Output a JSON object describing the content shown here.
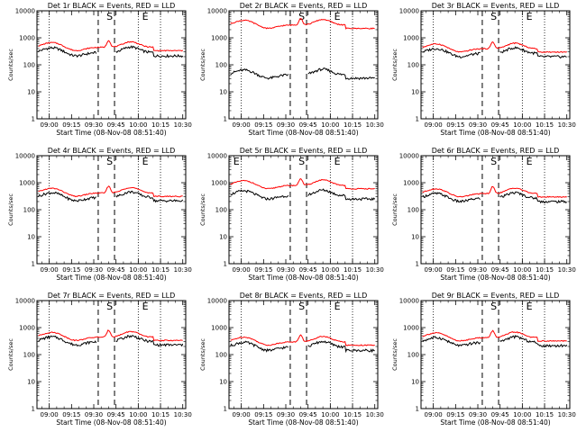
{
  "chart_data": [
    {
      "type": "line",
      "title": "Det 1r BLACK = Events, RED = LLD",
      "ylabel": "Counts/sec",
      "xlabel": "Start Time (08-Nov-08 08:51:40)",
      "x_ticks": [
        "09:00",
        "09:15",
        "09:30",
        "09:45",
        "10:00",
        "10:15",
        "10:30"
      ],
      "y_ticks": [
        "1",
        "10",
        "100",
        "1000",
        "10000"
      ],
      "ylim": [
        1,
        10000
      ],
      "log_y": true,
      "markers": [
        "S",
        "E"
      ],
      "series": [
        {
          "name": "Events",
          "color": "#000000",
          "level": 300
        },
        {
          "name": "LLD",
          "color": "#ff0000",
          "level": 450
        }
      ]
    },
    {
      "type": "line",
      "title": "Det 2r BLACK = Events, RED = LLD",
      "ylabel": "Counts/sec",
      "xlabel": "Start Time (08-Nov-08 08:51:40)",
      "x_ticks": [
        "09:00",
        "09:15",
        "09:30",
        "09:45",
        "10:00",
        "10:15",
        "10:30"
      ],
      "y_ticks": [
        "1",
        "10",
        "100",
        "1000",
        "10000"
      ],
      "ylim": [
        1,
        10000
      ],
      "log_y": true,
      "markers": [
        "S",
        "E"
      ],
      "series": [
        {
          "name": "Events",
          "color": "#000000",
          "level": 45
        },
        {
          "name": "LLD",
          "color": "#ff0000",
          "level": 3000
        }
      ]
    },
    {
      "type": "line",
      "title": "Det 3r BLACK = Events, RED = LLD",
      "ylabel": "Counts/sec",
      "xlabel": "Start Time (08-Nov-08 08:51:40)",
      "x_ticks": [
        "09:00",
        "09:15",
        "09:30",
        "09:45",
        "10:00",
        "10:15",
        "10:30"
      ],
      "y_ticks": [
        "1",
        "10",
        "100",
        "1000",
        "10000"
      ],
      "ylim": [
        1,
        10000
      ],
      "log_y": true,
      "markers": [
        "S",
        "E"
      ],
      "series": [
        {
          "name": "Events",
          "color": "#000000",
          "level": 280
        },
        {
          "name": "LLD",
          "color": "#ff0000",
          "level": 400
        }
      ]
    },
    {
      "type": "line",
      "title": "Det 4r BLACK = Events, RED = LLD",
      "ylabel": "Counts/sec",
      "xlabel": "Start Time (08-Nov-08 08:51:40)",
      "x_ticks": [
        "09:00",
        "09:15",
        "09:30",
        "09:45",
        "10:00",
        "10:15",
        "10:30"
      ],
      "y_ticks": [
        "1",
        "10",
        "100",
        "1000",
        "10000"
      ],
      "ylim": [
        1,
        10000
      ],
      "log_y": true,
      "markers": [
        "S",
        "E"
      ],
      "series": [
        {
          "name": "Events",
          "color": "#000000",
          "level": 300
        },
        {
          "name": "LLD",
          "color": "#ff0000",
          "level": 420
        }
      ]
    },
    {
      "type": "line",
      "title": "Det 5r BLACK = Events, RED = LLD",
      "ylabel": "Counts/sec",
      "xlabel": "Start Time (08-Nov-08 08:51:40)",
      "x_ticks": [
        "09:00",
        "09:15",
        "09:30",
        "09:45",
        "10:00",
        "10:15",
        "10:30"
      ],
      "y_ticks": [
        "1",
        "10",
        "100",
        "1000",
        "10000"
      ],
      "ylim": [
        1,
        10000
      ],
      "log_y": true,
      "markers": [
        "E",
        "S",
        "E"
      ],
      "series": [
        {
          "name": "Events",
          "color": "#000000",
          "level": 350
        },
        {
          "name": "LLD",
          "color": "#ff0000",
          "level": 800
        }
      ]
    },
    {
      "type": "line",
      "title": "Det 6r BLACK = Events, RED = LLD",
      "ylabel": "Counts/sec",
      "xlabel": "Start Time (08-Nov-08 08:51:40)",
      "x_ticks": [
        "09:00",
        "09:15",
        "09:30",
        "09:45",
        "10:00",
        "10:15",
        "10:30"
      ],
      "y_ticks": [
        "1",
        "10",
        "100",
        "1000",
        "10000"
      ],
      "ylim": [
        1,
        10000
      ],
      "log_y": true,
      "markers": [
        "S",
        "E"
      ],
      "series": [
        {
          "name": "Events",
          "color": "#000000",
          "level": 280
        },
        {
          "name": "LLD",
          "color": "#ff0000",
          "level": 400
        }
      ]
    },
    {
      "type": "line",
      "title": "Det 7r BLACK = Events, RED = LLD",
      "ylabel": "Counts/sec",
      "xlabel": "Start Time (08-Nov-08 08:51:40)",
      "x_ticks": [
        "09:00",
        "09:15",
        "09:30",
        "09:45",
        "10:00",
        "10:15",
        "10:30"
      ],
      "y_ticks": [
        "1",
        "10",
        "100",
        "1000",
        "10000"
      ],
      "ylim": [
        1,
        10000
      ],
      "log_y": true,
      "markers": [
        "S",
        "E"
      ],
      "series": [
        {
          "name": "Events",
          "color": "#000000",
          "level": 320
        },
        {
          "name": "LLD",
          "color": "#ff0000",
          "level": 450
        }
      ]
    },
    {
      "type": "line",
      "title": "Det 8r BLACK = Events, RED = LLD",
      "ylabel": "Counts/sec",
      "xlabel": "Start Time (08-Nov-08 08:51:40)",
      "x_ticks": [
        "09:00",
        "09:15",
        "09:30",
        "09:45",
        "10:00",
        "10:15",
        "10:30"
      ],
      "y_ticks": [
        "1",
        "10",
        "100",
        "1000",
        "10000"
      ],
      "ylim": [
        1,
        10000
      ],
      "log_y": true,
      "markers": [
        "S",
        "E"
      ],
      "series": [
        {
          "name": "Events",
          "color": "#000000",
          "level": 200
        },
        {
          "name": "LLD",
          "color": "#ff0000",
          "level": 300
        }
      ]
    },
    {
      "type": "line",
      "title": "Det 9r BLACK = Events, RED = LLD",
      "ylabel": "Counts/sec",
      "xlabel": "Start Time (08-Nov-08 08:51:40)",
      "x_ticks": [
        "09:00",
        "09:15",
        "09:30",
        "09:45",
        "10:00",
        "10:15",
        "10:30"
      ],
      "y_ticks": [
        "1",
        "10",
        "100",
        "1000",
        "10000"
      ],
      "ylim": [
        1,
        10000
      ],
      "log_y": true,
      "markers": [
        "S",
        "E"
      ],
      "series": [
        {
          "name": "Events",
          "color": "#000000",
          "level": 300
        },
        {
          "name": "LLD",
          "color": "#ff0000",
          "level": 430
        }
      ]
    }
  ]
}
